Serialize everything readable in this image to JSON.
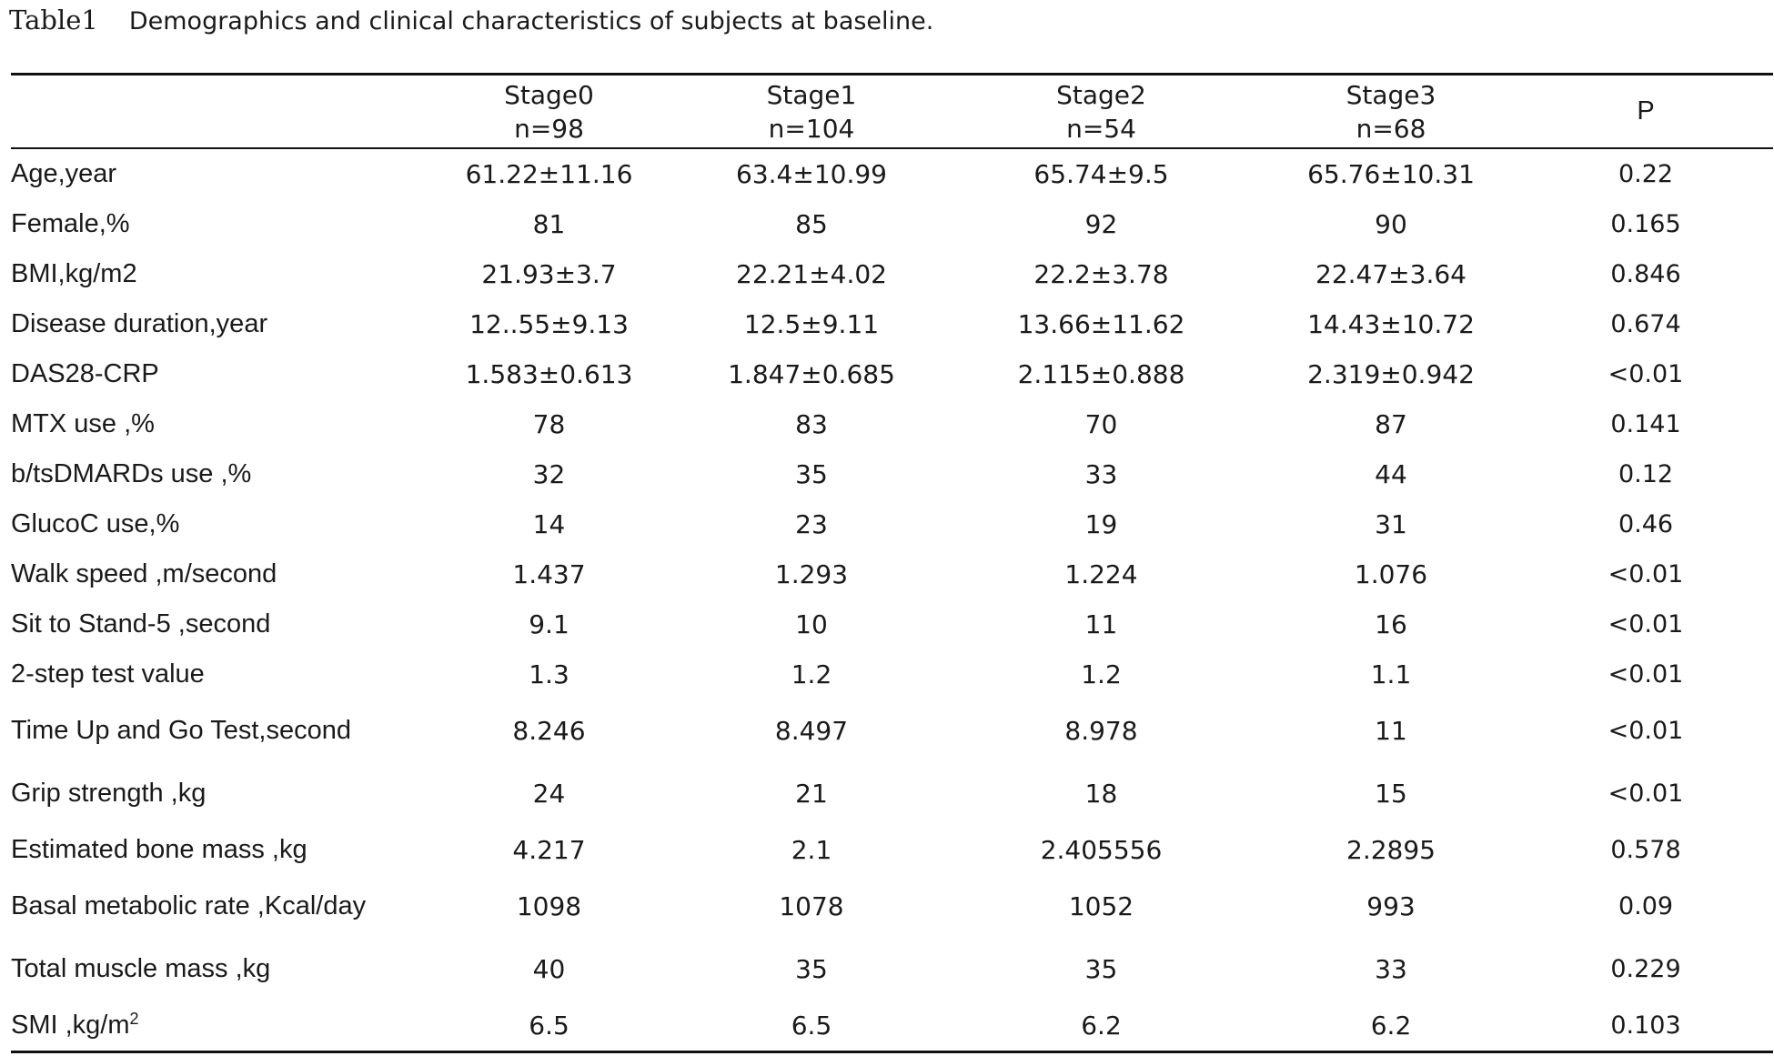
{
  "caption": {
    "label": "Table1",
    "text": "Demographics and clinical characteristics of subjects at baseline."
  },
  "table": {
    "headers": [
      {
        "lines": [
          "",
          ""
        ]
      },
      {
        "lines": [
          "Stage0",
          "n=98"
        ]
      },
      {
        "lines": [
          "Stage1",
          "n=104"
        ]
      },
      {
        "lines": [
          "Stage2",
          "n=54"
        ]
      },
      {
        "lines": [
          "Stage3",
          "n=68"
        ]
      },
      {
        "lines": [
          "P"
        ]
      }
    ],
    "rows": [
      {
        "label": "Age,year",
        "values": [
          "61.22±11.16",
          "63.4±10.99",
          "65.74±9.5",
          "65.76±10.31",
          "0.22"
        ]
      },
      {
        "label": "Female,%",
        "values": [
          "81",
          "85",
          "92",
          "90",
          "0.165"
        ]
      },
      {
        "label": "BMI,kg/m2",
        "values": [
          "21.93±3.7",
          "22.21±4.02",
          "22.2±3.78",
          "22.47±3.64",
          "0.846"
        ]
      },
      {
        "label": "Disease duration,year",
        "values": [
          "12..55±9.13",
          "12.5±9.11",
          "13.66±11.62",
          "14.43±10.72",
          "0.674"
        ]
      },
      {
        "label": "DAS28-CRP",
        "values": [
          "1.583±0.613",
          "1.847±0.685",
          "2.115±0.888",
          "2.319±0.942",
          "<0.01"
        ]
      },
      {
        "label": "MTX use ,%",
        "values": [
          "78",
          "83",
          "70",
          "87",
          "0.141"
        ]
      },
      {
        "label": "b/tsDMARDs use ,%",
        "values": [
          "32",
          "35",
          "33",
          "44",
          "0.12"
        ]
      },
      {
        "label": "GlucoC use,%",
        "values": [
          "14",
          "23",
          "19",
          "31",
          "0.46"
        ]
      },
      {
        "label": "Walk speed ,m/second",
        "values": [
          "1.437",
          "1.293",
          "1.224",
          "1.076",
          "<0.01"
        ]
      },
      {
        "label": "Sit to Stand-5 ,second",
        "values": [
          "9.1",
          "10",
          "11",
          "16",
          "<0.01"
        ]
      },
      {
        "label": "2-step test  value",
        "values": [
          "1.3",
          "1.2",
          "1.2",
          "1.1",
          "<0.01"
        ]
      },
      {
        "label": "Time Up and Go Test,second",
        "values": [
          "8.246",
          "8.497",
          "8.978",
          "11",
          "<0.01"
        ],
        "tall": true
      },
      {
        "label": "Grip strength ,kg",
        "values": [
          "24",
          "21",
          "18",
          "15",
          "<0.01"
        ],
        "tall": true
      },
      {
        "label": "Estimated bone mass ,kg",
        "values": [
          "4.217",
          "2.1",
          "2.405556",
          "2.2895",
          "0.578"
        ]
      },
      {
        "label": "Basal metabolic rate ,Kcal/day",
        "values": [
          "1098",
          "1078",
          "1052",
          "993",
          "0.09"
        ],
        "tall": true
      },
      {
        "label": "Total muscle mass ,kg",
        "values": [
          "40",
          "35",
          "35",
          "33",
          "0.229"
        ],
        "tall": true
      },
      {
        "label": "SMI ,kg/m",
        "label_sup": "2",
        "values": [
          "6.5",
          "6.5",
          "6.2",
          "6.2",
          "0.103"
        ]
      }
    ]
  }
}
